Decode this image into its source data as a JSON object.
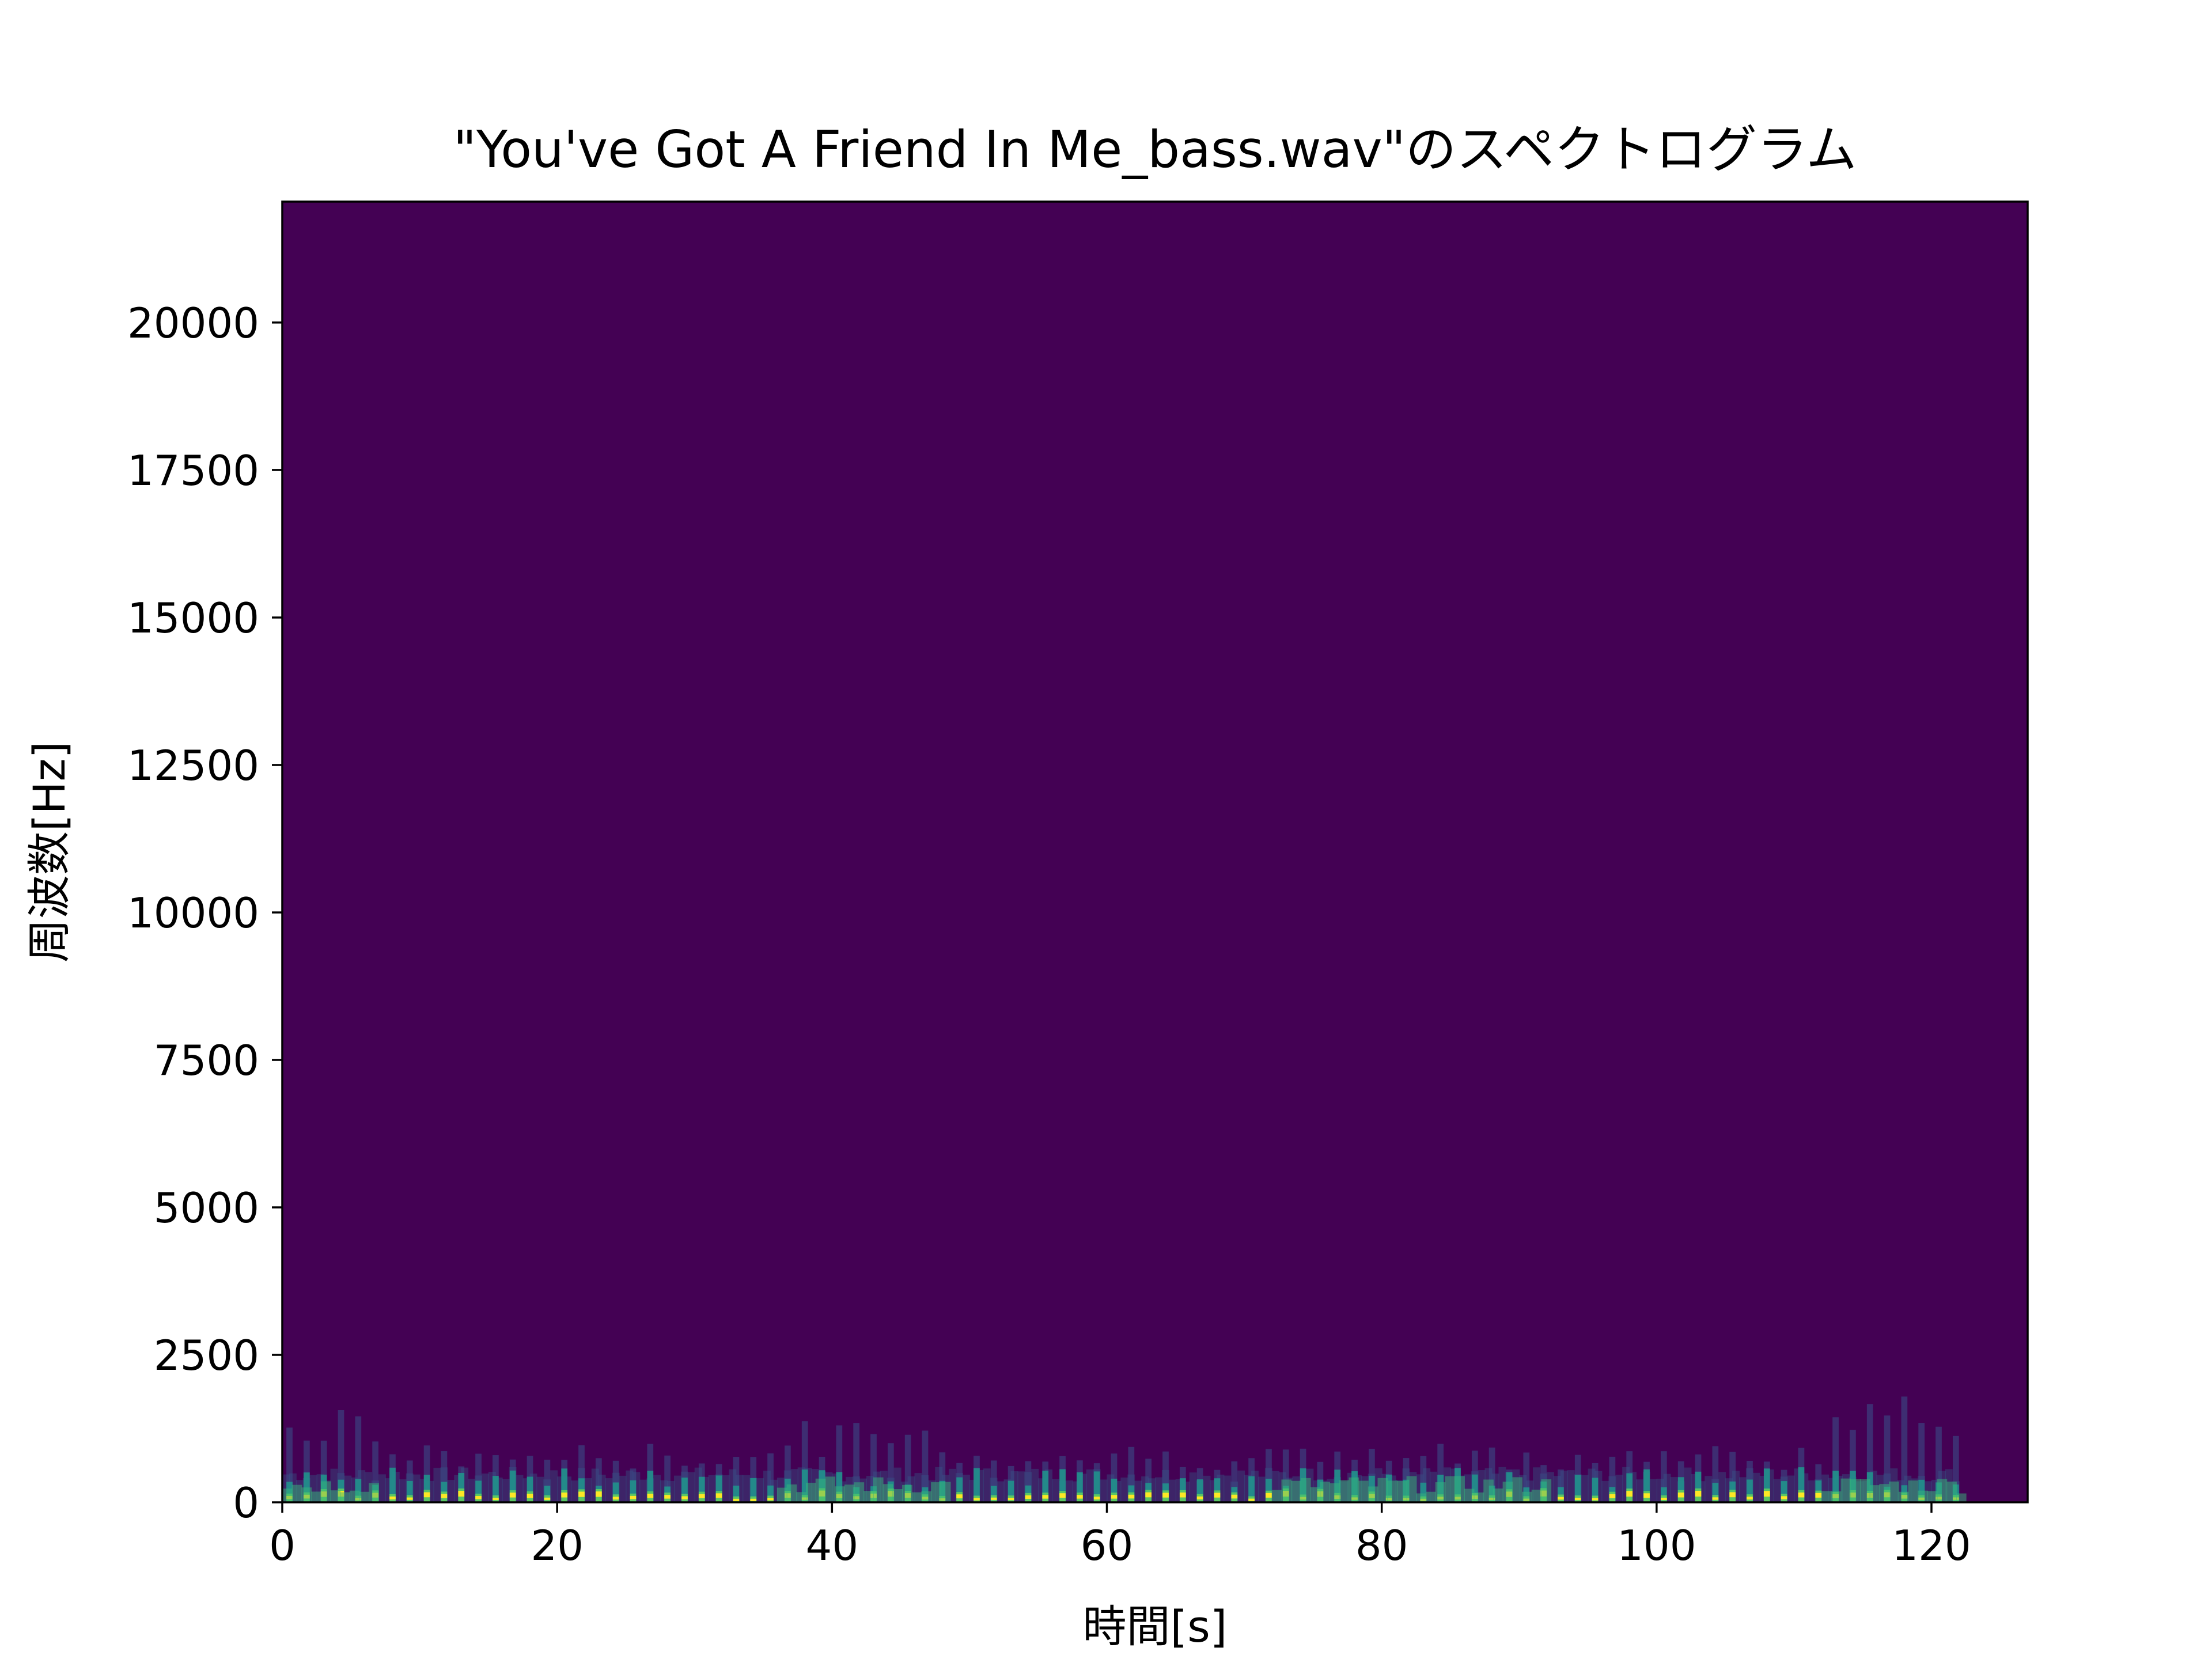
{
  "chart_data": {
    "type": "heatmap",
    "subtype": "spectrogram",
    "title": "\"You've Got A Friend In Me_bass.wav\"のスペクトログラム",
    "xlabel": "時間[s]",
    "ylabel": "周波数[Hz]",
    "xlim": [
      0,
      127
    ],
    "ylim": [
      0,
      22050
    ],
    "xticks": [
      0,
      20,
      40,
      60,
      80,
      100,
      120
    ],
    "xtick_labels": [
      "0",
      "20",
      "40",
      "60",
      "80",
      "100",
      "120"
    ],
    "yticks": [
      0,
      2500,
      5000,
      7500,
      10000,
      12500,
      15000,
      17500,
      20000
    ],
    "ytick_labels": [
      "0",
      "2500",
      "5000",
      "7500",
      "10000",
      "12500",
      "15000",
      "17500",
      "20000"
    ],
    "colormap": "viridis",
    "background_color": "#440154",
    "grid": false,
    "legend": "none",
    "signal_end_time": 122,
    "energy_band_hz": [
      0,
      1500
    ],
    "dominant_band_hz": [
      0,
      300
    ],
    "notable_regions": [
      {
        "time_range": [
          0,
          7
        ],
        "max_freq_hz": 1600
      },
      {
        "time_range": [
          36,
          48
        ],
        "max_freq_hz": 1400
      },
      {
        "time_range": [
          72,
          92
        ],
        "max_freq_hz": 1000
      },
      {
        "time_range": [
          112,
          122
        ],
        "max_freq_hz": 1800
      }
    ]
  },
  "colors": {
    "low": "#440154",
    "mid": "#21918c",
    "high": "#fde725"
  }
}
